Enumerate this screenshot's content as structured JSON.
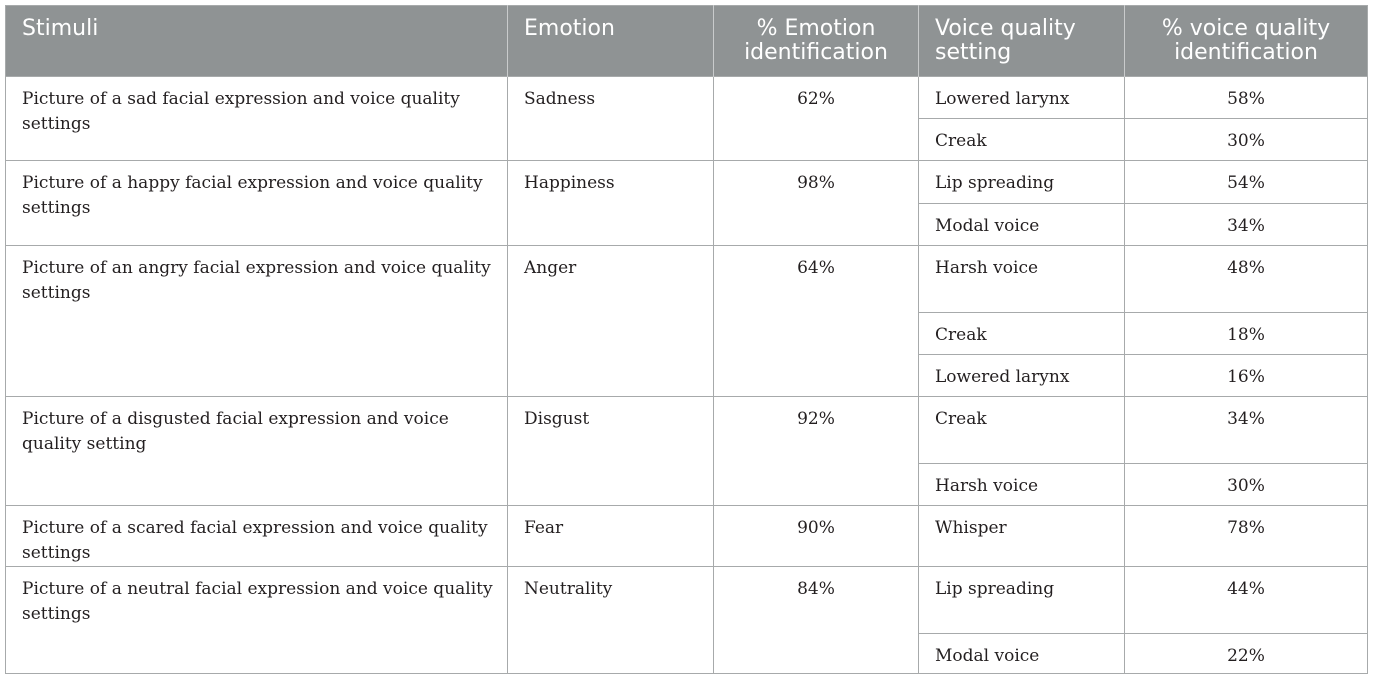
{
  "table": {
    "headers": {
      "stimuli": "Stimuli",
      "emotion": "Emotion",
      "emotion_pct": "% Emotion identification",
      "voice_setting": "Voice quality setting",
      "voice_pct": "% voice quality identification"
    },
    "groups": [
      {
        "stimulus": "Picture of a sad facial expression and voice quality settings",
        "emotion": "Sadness",
        "emotion_pct": "62%",
        "settings": [
          {
            "name": "Lowered larynx",
            "pct": "58%"
          },
          {
            "name": "Creak",
            "pct": "30%"
          }
        ]
      },
      {
        "stimulus": "Picture of a happy facial expression and voice quality settings",
        "emotion": "Happiness",
        "emotion_pct": "98%",
        "settings": [
          {
            "name": "Lip spreading",
            "pct": "54%"
          },
          {
            "name": "Modal voice",
            "pct": "34%"
          }
        ]
      },
      {
        "stimulus": "Picture of an angry facial expression and voice quality settings",
        "emotion": "Anger",
        "emotion_pct": "64%",
        "settings": [
          {
            "name": "Harsh voice",
            "pct": "48%"
          },
          {
            "name": "Creak",
            "pct": "18%"
          },
          {
            "name": "Lowered larynx",
            "pct": "16%"
          }
        ]
      },
      {
        "stimulus": "Picture of a disgusted facial expression and voice quality setting",
        "emotion": "Disgust",
        "emotion_pct": "92%",
        "settings": [
          {
            "name": "Creak",
            "pct": "34%"
          },
          {
            "name": "Harsh voice",
            "pct": "30%"
          }
        ]
      },
      {
        "stimulus": "Picture of a scared facial expression and voice quality settings",
        "emotion": "Fear",
        "emotion_pct": "90%",
        "settings": [
          {
            "name": "Whisper",
            "pct": "78%"
          }
        ]
      },
      {
        "stimulus": "Picture of a neutral facial expression and voice quality settings",
        "emotion": "Neutrality",
        "emotion_pct": "84%",
        "settings": [
          {
            "name": "Lip spreading",
            "pct": "44%"
          },
          {
            "name": "Modal voice",
            "pct": "22%"
          }
        ]
      }
    ]
  }
}
